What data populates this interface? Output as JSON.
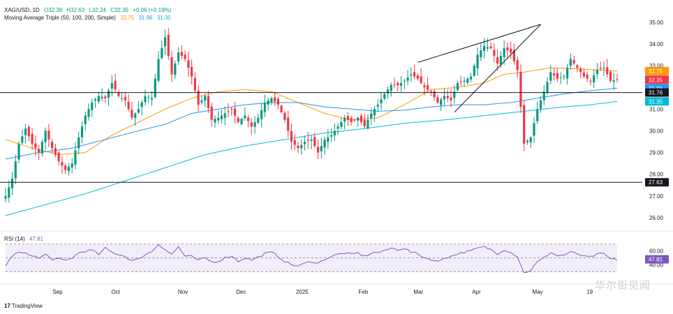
{
  "header": {
    "symbol": "XAG/USD, 1D",
    "open": "O32.38",
    "high": "H32.63",
    "low": "L32.24",
    "close": "C32.35",
    "change": "+0.06 (+0.19%)",
    "indicator": "Moving Average Triple (50, 100, 200, Simple)",
    "ma_values": [
      "32.75",
      "31.96",
      "31.35"
    ]
  },
  "rsi_header": {
    "label": "RSI (14)",
    "value": "47.81"
  },
  "branding": {
    "tradingview": "TradingView",
    "watermark": "华尔街见闻"
  },
  "colors": {
    "up": "#089981",
    "down": "#f23645",
    "ma50": "#ff9800",
    "ma100": "#2196f3",
    "ma200": "#00bcd4",
    "rsi": "#7e57c2"
  },
  "chart_data": {
    "type": "candlestick",
    "price_axis": {
      "ticks": [
        "35.00",
        "34.00",
        "33.00",
        "32.00",
        "31.00",
        "30.00",
        "29.00",
        "28.00",
        "27.00",
        "26.00"
      ],
      "range": [
        25.55,
        35.25
      ]
    },
    "time_axis": {
      "labels": [
        "Sep",
        "Oct",
        "Nov",
        "Dec",
        "2025",
        "Feb",
        "Mar",
        "Apr",
        "May",
        "19"
      ]
    },
    "price_labels": [
      {
        "text": "32.75",
        "value": 32.75,
        "color": "#ff9800"
      },
      {
        "text": "32.35",
        "value": 32.35,
        "color": "#f23645"
      },
      {
        "text": "31.96",
        "value": 31.96,
        "color": "#2196f3"
      },
      {
        "text": "31.76",
        "value": 31.76,
        "color": "#131722"
      },
      {
        "text": "31.35",
        "value": 31.35,
        "color": "#00bcd4"
      },
      {
        "text": "27.63",
        "value": 27.63,
        "color": "#131722"
      }
    ],
    "horizontal_lines": [
      31.76,
      27.63
    ],
    "rsi_axis": {
      "ticks": [
        "60.00",
        "40.00"
      ],
      "band": [
        30,
        70
      ],
      "mid": 50,
      "range": [
        15,
        86
      ]
    },
    "trendlines": [
      {
        "from": [
          124,
          33.15
        ],
        "to": [
          161,
          34.9
        ]
      },
      {
        "from": [
          135,
          30.85
        ],
        "to": [
          161,
          34.9
        ]
      }
    ],
    "price_anchors": [
      [
        0,
        27.0
      ],
      [
        2,
        27.8
      ],
      [
        4,
        29.4
      ],
      [
        6,
        30.1
      ],
      [
        8,
        29.4
      ],
      [
        10,
        29.0
      ],
      [
        12,
        30.0
      ],
      [
        14,
        29.2
      ],
      [
        16,
        28.6
      ],
      [
        18,
        28.2
      ],
      [
        20,
        28.5
      ],
      [
        22,
        29.7
      ],
      [
        24,
        30.7
      ],
      [
        26,
        31.3
      ],
      [
        28,
        31.6
      ],
      [
        30,
        31.5
      ],
      [
        32,
        32.2
      ],
      [
        34,
        31.6
      ],
      [
        36,
        31.4
      ],
      [
        38,
        30.6
      ],
      [
        40,
        31.0
      ],
      [
        42,
        31.6
      ],
      [
        44,
        31.5
      ],
      [
        46,
        33.3
      ],
      [
        48,
        34.3
      ],
      [
        50,
        32.6
      ],
      [
        52,
        33.6
      ],
      [
        54,
        33.3
      ],
      [
        56,
        32.5
      ],
      [
        58,
        31.2
      ],
      [
        60,
        31.6
      ],
      [
        62,
        30.5
      ],
      [
        64,
        30.6
      ],
      [
        66,
        30.8
      ],
      [
        68,
        31.0
      ],
      [
        70,
        30.4
      ],
      [
        72,
        30.7
      ],
      [
        74,
        30.2
      ],
      [
        76,
        30.6
      ],
      [
        78,
        31.3
      ],
      [
        80,
        31.5
      ],
      [
        82,
        31.2
      ],
      [
        84,
        30.5
      ],
      [
        86,
        29.5
      ],
      [
        88,
        29.2
      ],
      [
        90,
        29.5
      ],
      [
        92,
        29.6
      ],
      [
        94,
        29.0
      ],
      [
        96,
        29.6
      ],
      [
        98,
        29.8
      ],
      [
        100,
        30.2
      ],
      [
        102,
        30.6
      ],
      [
        104,
        30.4
      ],
      [
        106,
        30.6
      ],
      [
        108,
        30.2
      ],
      [
        110,
        30.8
      ],
      [
        112,
        31.2
      ],
      [
        114,
        31.7
      ],
      [
        116,
        32.1
      ],
      [
        118,
        32.1
      ],
      [
        120,
        32.3
      ],
      [
        122,
        32.6
      ],
      [
        124,
        32.4
      ],
      [
        126,
        32.0
      ],
      [
        128,
        31.8
      ],
      [
        130,
        31.3
      ],
      [
        132,
        31.6
      ],
      [
        134,
        31.4
      ],
      [
        136,
        32.2
      ],
      [
        138,
        32.3
      ],
      [
        140,
        32.5
      ],
      [
        142,
        33.5
      ],
      [
        144,
        33.9
      ],
      [
        146,
        33.8
      ],
      [
        148,
        33.1
      ],
      [
        150,
        33.8
      ],
      [
        152,
        33.6
      ],
      [
        154,
        32.8
      ],
      [
        156,
        29.4
      ],
      [
        158,
        29.7
      ],
      [
        160,
        31.0
      ],
      [
        162,
        31.8
      ],
      [
        164,
        32.7
      ],
      [
        166,
        32.4
      ],
      [
        168,
        32.5
      ],
      [
        170,
        33.3
      ],
      [
        172,
        32.9
      ],
      [
        174,
        32.5
      ],
      [
        176,
        32.3
      ],
      [
        178,
        32.8
      ],
      [
        180,
        32.9
      ],
      [
        182,
        32.3
      ],
      [
        184,
        32.35
      ]
    ],
    "rsi_anchors": [
      [
        0,
        38
      ],
      [
        2,
        53
      ],
      [
        4,
        58
      ],
      [
        6,
        56
      ],
      [
        8,
        54
      ],
      [
        10,
        49
      ],
      [
        12,
        55
      ],
      [
        14,
        48
      ],
      [
        16,
        48
      ],
      [
        18,
        46
      ],
      [
        20,
        50
      ],
      [
        22,
        57
      ],
      [
        24,
        60
      ],
      [
        26,
        61
      ],
      [
        28,
        55
      ],
      [
        30,
        64
      ],
      [
        32,
        58
      ],
      [
        34,
        55
      ],
      [
        36,
        52
      ],
      [
        38,
        46
      ],
      [
        40,
        48
      ],
      [
        42,
        55
      ],
      [
        44,
        59
      ],
      [
        46,
        70
      ],
      [
        48,
        62
      ],
      [
        50,
        55
      ],
      [
        52,
        66
      ],
      [
        54,
        52
      ],
      [
        56,
        52
      ],
      [
        58,
        46
      ],
      [
        60,
        50
      ],
      [
        62,
        44
      ],
      [
        64,
        45
      ],
      [
        66,
        50
      ],
      [
        68,
        53
      ],
      [
        70,
        45
      ],
      [
        72,
        50
      ],
      [
        74,
        47
      ],
      [
        76,
        51
      ],
      [
        78,
        56
      ],
      [
        80,
        58
      ],
      [
        82,
        52
      ],
      [
        84,
        45
      ],
      [
        86,
        40
      ],
      [
        88,
        38
      ],
      [
        90,
        42
      ],
      [
        92,
        45
      ],
      [
        94,
        42
      ],
      [
        96,
        48
      ],
      [
        98,
        52
      ],
      [
        100,
        55
      ],
      [
        102,
        57
      ],
      [
        104,
        55
      ],
      [
        106,
        57
      ],
      [
        108,
        52
      ],
      [
        110,
        57
      ],
      [
        112,
        58
      ],
      [
        114,
        60
      ],
      [
        116,
        64
      ],
      [
        118,
        62
      ],
      [
        120,
        64
      ],
      [
        122,
        58
      ],
      [
        124,
        56
      ],
      [
        126,
        50
      ],
      [
        128,
        48
      ],
      [
        130,
        44
      ],
      [
        132,
        50
      ],
      [
        134,
        52
      ],
      [
        136,
        56
      ],
      [
        138,
        58
      ],
      [
        140,
        60
      ],
      [
        142,
        64
      ],
      [
        144,
        66
      ],
      [
        146,
        62
      ],
      [
        148,
        56
      ],
      [
        150,
        62
      ],
      [
        152,
        58
      ],
      [
        154,
        52
      ],
      [
        156,
        28
      ],
      [
        158,
        32
      ],
      [
        160,
        44
      ],
      [
        162,
        50
      ],
      [
        164,
        58
      ],
      [
        166,
        53
      ],
      [
        168,
        54
      ],
      [
        170,
        58
      ],
      [
        172,
        56
      ],
      [
        174,
        52
      ],
      [
        176,
        51
      ],
      [
        178,
        55
      ],
      [
        180,
        56
      ],
      [
        182,
        48
      ],
      [
        184,
        47.81
      ]
    ],
    "ma_paths": {
      "ma50": [
        [
          0,
          29.6
        ],
        [
          8,
          29.2
        ],
        [
          16,
          28.9
        ],
        [
          24,
          29.0
        ],
        [
          32,
          29.8
        ],
        [
          40,
          30.4
        ],
        [
          48,
          31.0
        ],
        [
          56,
          31.5
        ],
        [
          64,
          31.8
        ],
        [
          72,
          31.9
        ],
        [
          80,
          31.8
        ],
        [
          88,
          31.3
        ],
        [
          96,
          30.8
        ],
        [
          104,
          30.5
        ],
        [
          112,
          30.6
        ],
        [
          120,
          31.2
        ],
        [
          128,
          31.9
        ],
        [
          136,
          32.0
        ],
        [
          144,
          32.2
        ],
        [
          150,
          32.6
        ],
        [
          156,
          32.7
        ],
        [
          164,
          32.9
        ],
        [
          172,
          32.85
        ],
        [
          184,
          32.75
        ]
      ],
      "ma100": [
        [
          0,
          28.7
        ],
        [
          10,
          29.0
        ],
        [
          20,
          29.2
        ],
        [
          30,
          29.6
        ],
        [
          40,
          30.0
        ],
        [
          48,
          30.3
        ],
        [
          56,
          30.8
        ],
        [
          64,
          31.0
        ],
        [
          72,
          31.2
        ],
        [
          80,
          31.3
        ],
        [
          88,
          31.3
        ],
        [
          96,
          31.1
        ],
        [
          104,
          31.0
        ],
        [
          112,
          30.9
        ],
        [
          120,
          30.95
        ],
        [
          128,
          31.1
        ],
        [
          136,
          31.2
        ],
        [
          144,
          31.2
        ],
        [
          152,
          31.3
        ],
        [
          160,
          31.5
        ],
        [
          168,
          31.7
        ],
        [
          176,
          31.85
        ],
        [
          184,
          31.96
        ]
      ],
      "ma200": [
        [
          0,
          26.1
        ],
        [
          12,
          26.6
        ],
        [
          24,
          27.1
        ],
        [
          36,
          27.7
        ],
        [
          48,
          28.3
        ],
        [
          60,
          28.9
        ],
        [
          72,
          29.3
        ],
        [
          84,
          29.6
        ],
        [
          96,
          29.9
        ],
        [
          108,
          30.1
        ],
        [
          120,
          30.35
        ],
        [
          132,
          30.5
        ],
        [
          144,
          30.7
        ],
        [
          156,
          30.9
        ],
        [
          168,
          31.1
        ],
        [
          176,
          31.2
        ],
        [
          184,
          31.35
        ]
      ]
    }
  }
}
